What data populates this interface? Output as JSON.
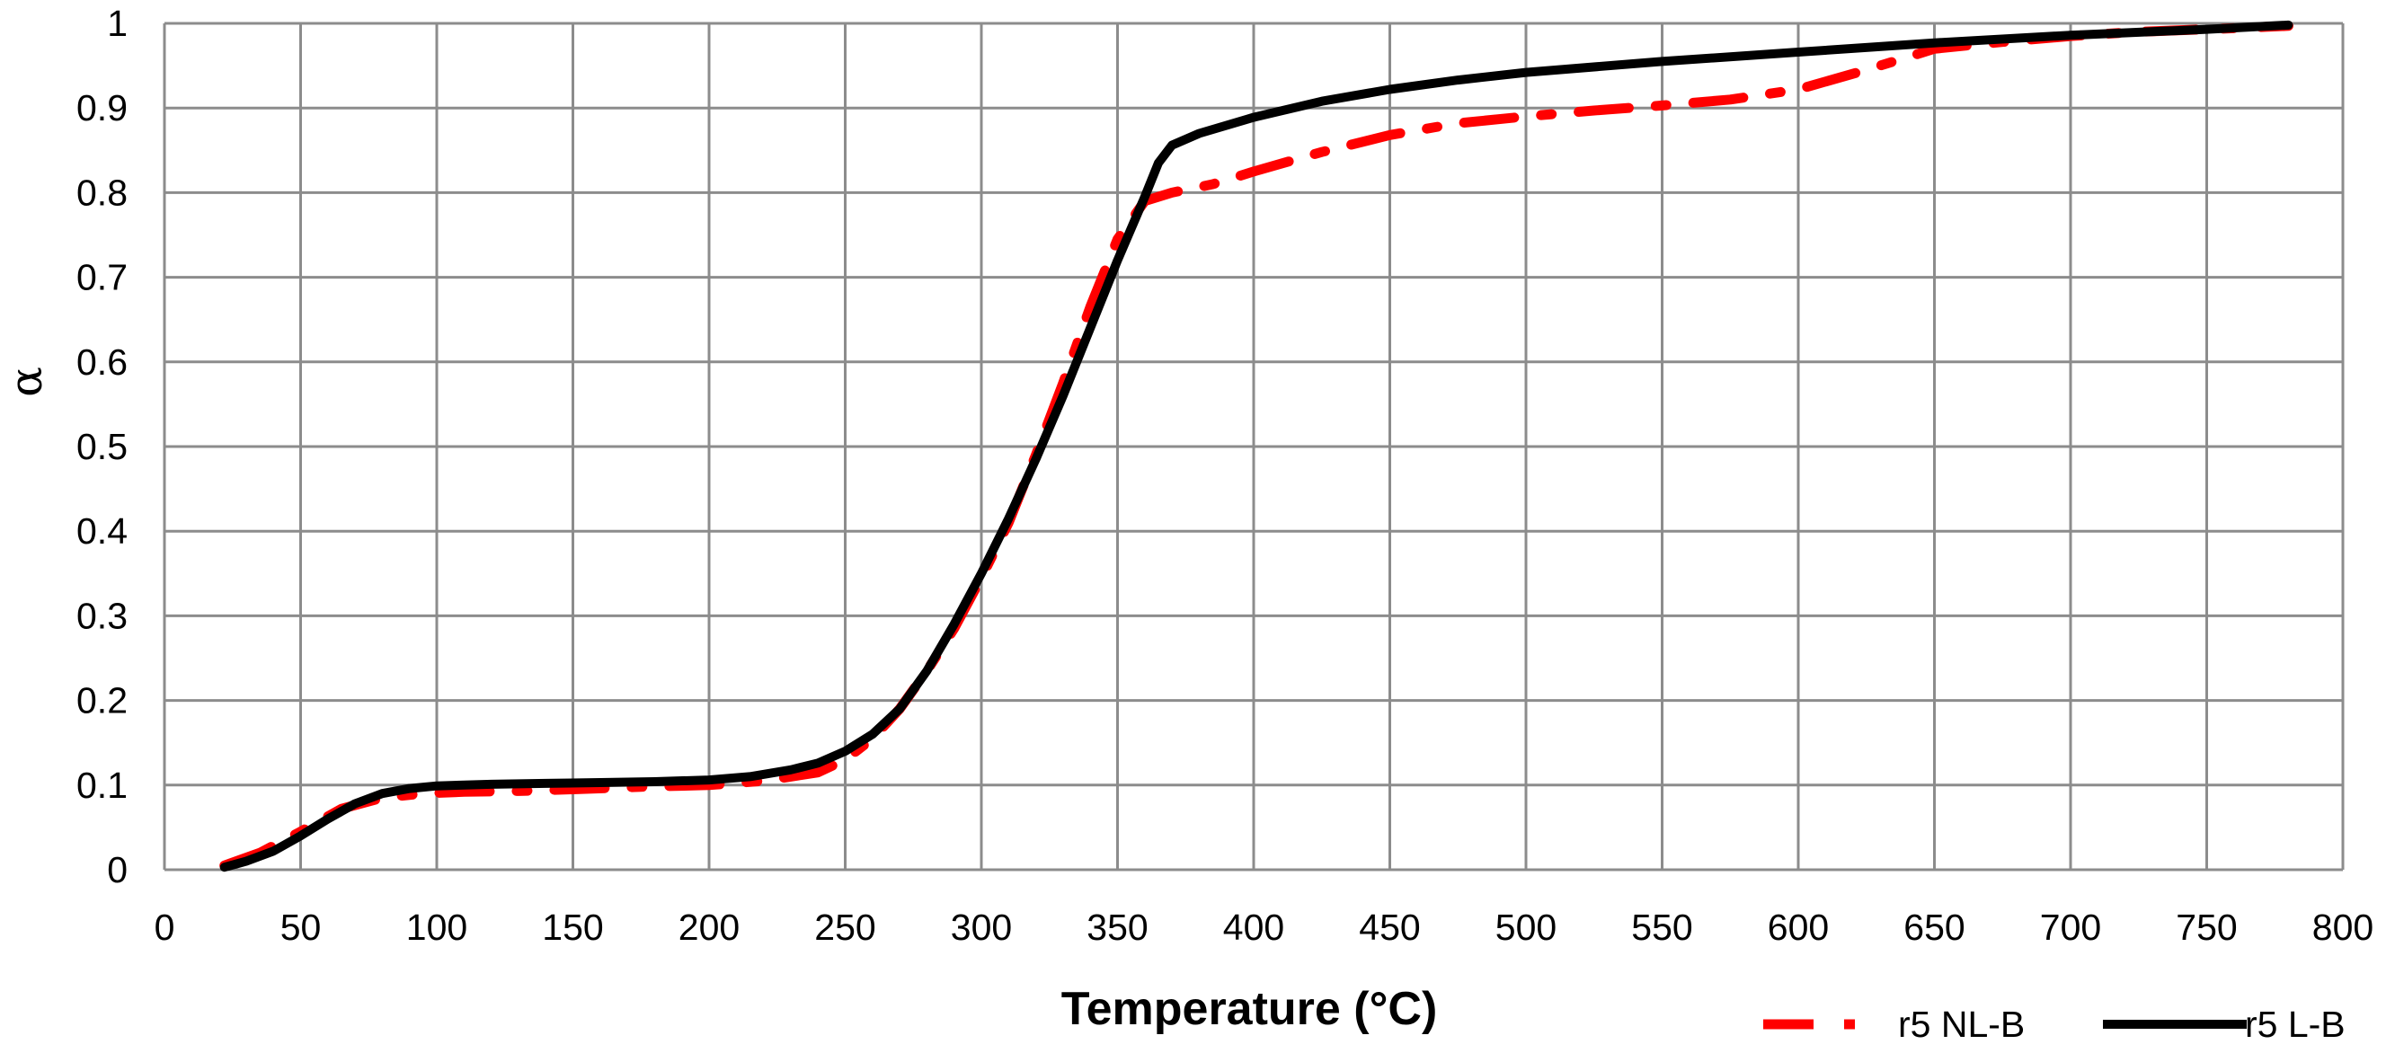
{
  "chart_data": {
    "type": "line",
    "title": "",
    "xlabel": "Temperature (°C)",
    "ylabel": "α",
    "xlim": [
      0,
      800
    ],
    "ylim": [
      0,
      1
    ],
    "xticks": [
      0,
      50,
      100,
      150,
      200,
      250,
      300,
      350,
      400,
      450,
      500,
      550,
      600,
      650,
      700,
      750,
      800
    ],
    "yticks": [
      0,
      0.1,
      0.2,
      0.3,
      0.4,
      0.5,
      0.6,
      0.7,
      0.8,
      0.9,
      1
    ],
    "xtick_labels": [
      "0",
      "50",
      "100",
      "150",
      "200",
      "250",
      "300",
      "350",
      "400",
      "450",
      "500",
      "550",
      "600",
      "650",
      "700",
      "750",
      "800"
    ],
    "ytick_labels": [
      "0",
      "0.1",
      "0.2",
      "0.3",
      "0.4",
      "0.5",
      "0.6",
      "0.7",
      "0.8",
      "0.9",
      "1"
    ],
    "grid": true,
    "legend_position": "bottom-right",
    "series": [
      {
        "name": "r5 NL-B",
        "color": "#ff0000",
        "style": "dash-dot",
        "x": [
          22,
          35,
          50,
          65,
          80,
          95,
          110,
          130,
          150,
          175,
          200,
          220,
          240,
          250,
          260,
          270,
          280,
          290,
          300,
          310,
          320,
          330,
          340,
          350,
          360,
          370,
          385,
          400,
          425,
          450,
          475,
          500,
          525,
          550,
          575,
          600,
          625,
          650,
          675,
          700,
          725,
          750,
          780
        ],
        "y": [
          0.005,
          0.02,
          0.045,
          0.072,
          0.085,
          0.09,
          0.092,
          0.093,
          0.095,
          0.098,
          0.1,
          0.105,
          0.115,
          0.13,
          0.155,
          0.19,
          0.235,
          0.285,
          0.345,
          0.41,
          0.49,
          0.575,
          0.665,
          0.745,
          0.79,
          0.8,
          0.81,
          0.825,
          0.848,
          0.868,
          0.882,
          0.89,
          0.897,
          0.903,
          0.91,
          0.922,
          0.945,
          0.97,
          0.978,
          0.985,
          0.99,
          0.993,
          0.997
        ]
      },
      {
        "name": "r5 L-B",
        "color": "#000000",
        "style": "solid",
        "x": [
          22,
          30,
          40,
          50,
          60,
          70,
          80,
          90,
          100,
          120,
          140,
          160,
          180,
          200,
          215,
          230,
          240,
          250,
          260,
          270,
          280,
          290,
          300,
          310,
          320,
          330,
          340,
          350,
          360,
          365,
          370,
          380,
          400,
          425,
          450,
          475,
          500,
          550,
          600,
          650,
          700,
          750,
          780
        ],
        "y": [
          0.003,
          0.01,
          0.022,
          0.04,
          0.06,
          0.078,
          0.09,
          0.096,
          0.099,
          0.101,
          0.102,
          0.103,
          0.104,
          0.106,
          0.11,
          0.118,
          0.126,
          0.14,
          0.16,
          0.19,
          0.235,
          0.29,
          0.35,
          0.415,
          0.485,
          0.56,
          0.64,
          0.72,
          0.795,
          0.835,
          0.856,
          0.87,
          0.889,
          0.908,
          0.922,
          0.933,
          0.942,
          0.955,
          0.966,
          0.977,
          0.986,
          0.993,
          0.998
        ]
      }
    ]
  }
}
